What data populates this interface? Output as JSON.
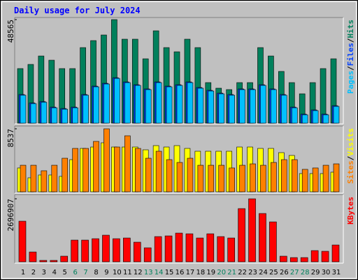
{
  "chart_data": [
    {
      "type": "bar",
      "title": "Daily usage for July 2024",
      "title_color": "#0000ff",
      "legend_separator": "/",
      "ylim": [
        0,
        48565
      ],
      "yticks": [
        48565
      ],
      "series": [
        {
          "name": "Hits",
          "color": "#00805c",
          "values": [
            25600,
            27560,
            31500,
            29530,
            25600,
            25600,
            35440,
            38720,
            41350,
            48565,
            39380,
            39380,
            30190,
            43310,
            35440,
            33470,
            39380,
            35440,
            19030,
            16410,
            15750,
            19030,
            19030,
            35440,
            31500,
            24280,
            19030,
            13780,
            19030,
            25600,
            30190
          ]
        },
        {
          "name": "Files",
          "color": "#0040ff",
          "values": [
            13450,
            9510,
            10160,
            7540,
            6880,
            7540,
            13450,
            17380,
            18700,
            21320,
            19350,
            18040,
            16070,
            19350,
            17380,
            18040,
            19350,
            16730,
            15420,
            14100,
            13450,
            16070,
            16070,
            18040,
            16070,
            13450,
            7540,
            4260,
            6230,
            4260,
            8200
          ]
        },
        {
          "name": "Pages",
          "color": "#00c0ff",
          "values": [
            13130,
            9190,
            9840,
            7220,
            6560,
            7220,
            13130,
            17060,
            18380,
            21000,
            19030,
            17720,
            15750,
            19030,
            17060,
            17720,
            19030,
            16410,
            15090,
            13780,
            13130,
            15750,
            15750,
            17720,
            15750,
            13130,
            7220,
            3940,
            5910,
            3940,
            7880
          ]
        }
      ]
    },
    {
      "type": "bar",
      "legend_separator": "/",
      "ylim": [
        0,
        8537
      ],
      "yticks": [
        8537
      ],
      "series": [
        {
          "name": "Visits",
          "color": "#ffff00",
          "values": [
            3230,
            1900,
            2280,
            2280,
            2090,
            4360,
            5880,
            6070,
            6640,
            6070,
            6070,
            6070,
            5690,
            6260,
            6070,
            6260,
            5880,
            5500,
            5500,
            5500,
            5500,
            6070,
            6070,
            5880,
            5880,
            5310,
            4930,
            2470,
            2470,
            2470,
            2660
          ]
        },
        {
          "name": "Sites",
          "color": "#ff8000",
          "values": [
            3600,
            3600,
            2850,
            3600,
            4550,
            5880,
            5880,
            6830,
            8537,
            6070,
            7590,
            5880,
            4550,
            5500,
            4360,
            3980,
            4550,
            3600,
            3600,
            3600,
            3230,
            3600,
            3790,
            3600,
            3980,
            4360,
            4360,
            3040,
            3230,
            3600,
            3790
          ]
        }
      ]
    },
    {
      "type": "bar",
      "ylim": [
        0,
        2696907
      ],
      "yticks": [
        2696907
      ],
      "categories": [
        "1",
        "2",
        "3",
        "4",
        "5",
        "6",
        "7",
        "8",
        "9",
        "10",
        "11",
        "12",
        "13",
        "14",
        "15",
        "16",
        "17",
        "18",
        "19",
        "20",
        "21",
        "22",
        "23",
        "24",
        "25",
        "26",
        "27",
        "28",
        "29",
        "30",
        "31"
      ],
      "category_colors": [
        "#000000",
        "#000000",
        "#000000",
        "#000000",
        "#000000",
        "#00805c",
        "#00805c",
        "#000000",
        "#000000",
        "#000000",
        "#000000",
        "#000000",
        "#00805c",
        "#00805c",
        "#000000",
        "#000000",
        "#000000",
        "#000000",
        "#000000",
        "#00805c",
        "#00805c",
        "#000000",
        "#000000",
        "#000000",
        "#000000",
        "#000000",
        "#00805c",
        "#00805c",
        "#000000",
        "#000000",
        "#000000"
      ],
      "series": [
        {
          "name": "KBytes",
          "color": "#ff0000",
          "values": [
            1738000,
            419500,
            60000,
            60000,
            240000,
            929000,
            929000,
            988900,
            1138700,
            988900,
            1018800,
            839000,
            599300,
            1078800,
            1108700,
            1228600,
            1198600,
            1018800,
            1198600,
            1078800,
            1018800,
            2277400,
            2696907,
            2067600,
            1708000,
            240000,
            179800,
            179800,
            479400,
            449500,
            719200
          ]
        }
      ]
    }
  ]
}
